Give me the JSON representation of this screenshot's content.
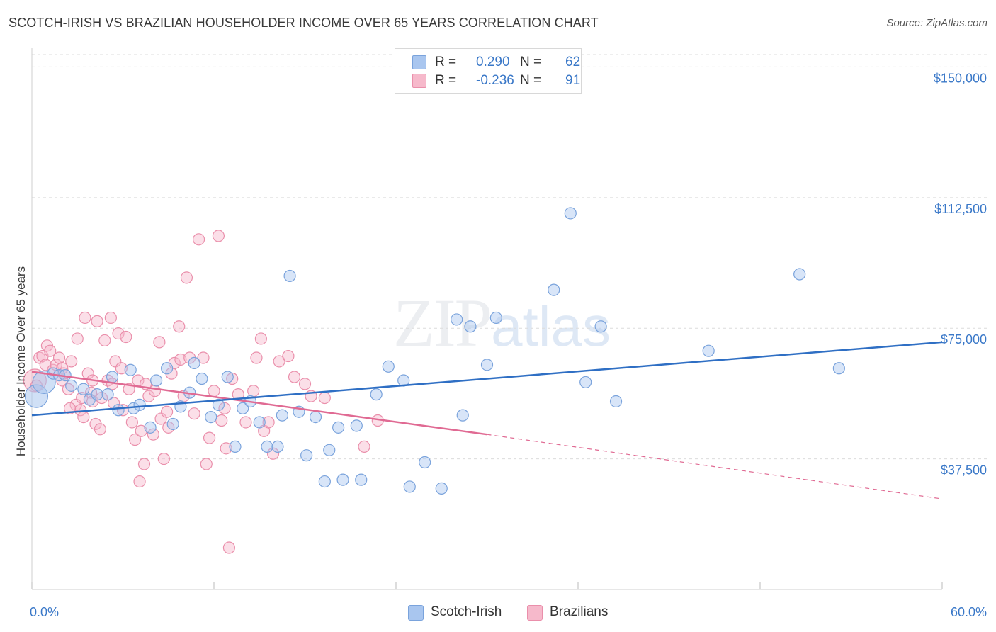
{
  "title": "SCOTCH-IRISH VS BRAZILIAN HOUSEHOLDER INCOME OVER 65 YEARS CORRELATION CHART",
  "source": "Source: ZipAtlas.com",
  "watermark": {
    "zip": "ZIP",
    "atlas": "atlas"
  },
  "legend": {
    "scotch": {
      "r_label": "R =",
      "r_value": "0.290",
      "n_label": "N =",
      "n_value": "62"
    },
    "brazil": {
      "r_label": "R =",
      "r_value": "-0.236",
      "n_label": "N =",
      "n_value": "91"
    }
  },
  "colors": {
    "scotch_fill": "#a9c6ef",
    "scotch_stroke": "#7aa3dc",
    "scotch_line": "#2f6fc4",
    "brazil_fill": "#f6b9cb",
    "brazil_stroke": "#ea8fab",
    "brazil_line": "#e06a93",
    "grid": "#dcdcdc",
    "axis_text": "#3a78c8"
  },
  "chart_data": {
    "type": "scatter",
    "title": "SCOTCH-IRISH VS BRAZILIAN HOUSEHOLDER INCOME OVER 65 YEARS CORRELATION CHART",
    "xlabel": "",
    "ylabel": "Householder Income Over 65 years",
    "xlim": [
      0,
      60
    ],
    "ylim": [
      0,
      157000
    ],
    "x_tick_labels": [
      "0.0%",
      "60.0%"
    ],
    "y_ticks": [
      37500,
      75000,
      112500,
      150000
    ],
    "y_tick_labels": [
      "$37,500",
      "$75,000",
      "$112,500",
      "$150,000"
    ],
    "grid": true,
    "legend_position": "top-center",
    "series": [
      {
        "name": "Scotch-Irish",
        "trend": {
          "x": [
            0,
            60
          ],
          "y": [
            50000,
            71000
          ]
        },
        "points": [
          [
            0.3,
            55500,
            "big"
          ],
          [
            0.8,
            59500,
            "big"
          ],
          [
            1.4,
            62000
          ],
          [
            1.8,
            61500
          ],
          [
            2.2,
            61500
          ],
          [
            2.6,
            58500
          ],
          [
            3.4,
            57500
          ],
          [
            3.8,
            54500
          ],
          [
            4.3,
            56000
          ],
          [
            5.0,
            56000
          ],
          [
            5.3,
            61000
          ],
          [
            5.7,
            51500
          ],
          [
            6.5,
            63000
          ],
          [
            6.7,
            52000
          ],
          [
            7.1,
            53000
          ],
          [
            7.8,
            46500
          ],
          [
            8.2,
            60000
          ],
          [
            8.9,
            63500
          ],
          [
            9.3,
            47500
          ],
          [
            9.8,
            52500
          ],
          [
            10.4,
            56500
          ],
          [
            10.7,
            65000
          ],
          [
            11.2,
            60500
          ],
          [
            11.8,
            49500
          ],
          [
            12.3,
            53000
          ],
          [
            12.9,
            61000
          ],
          [
            13.4,
            41000
          ],
          [
            13.9,
            52000
          ],
          [
            14.4,
            54000
          ],
          [
            15.0,
            48000
          ],
          [
            15.5,
            41000
          ],
          [
            16.2,
            41000
          ],
          [
            16.5,
            50000
          ],
          [
            17.0,
            90000
          ],
          [
            17.6,
            51000
          ],
          [
            18.1,
            38500
          ],
          [
            18.7,
            49500
          ],
          [
            19.3,
            31000
          ],
          [
            19.6,
            40000
          ],
          [
            20.2,
            46500
          ],
          [
            20.5,
            31500
          ],
          [
            21.4,
            47000
          ],
          [
            21.7,
            31500
          ],
          [
            22.7,
            56000
          ],
          [
            23.5,
            64000
          ],
          [
            24.5,
            60000
          ],
          [
            24.9,
            29500
          ],
          [
            25.9,
            36500
          ],
          [
            27.0,
            29000
          ],
          [
            28.0,
            77500
          ],
          [
            28.4,
            50000
          ],
          [
            28.9,
            75500
          ],
          [
            30.0,
            64500
          ],
          [
            30.6,
            78000
          ],
          [
            34.4,
            86000
          ],
          [
            35.5,
            108000
          ],
          [
            36.5,
            59500
          ],
          [
            37.5,
            75500
          ],
          [
            38.5,
            54000
          ],
          [
            44.6,
            68500
          ],
          [
            50.6,
            90500
          ],
          [
            53.2,
            63500
          ]
        ]
      },
      {
        "name": "Brazilians",
        "trend": {
          "x": [
            0,
            30
          ],
          "y": [
            62500,
            44500
          ]
        },
        "trend_dashed": {
          "x": [
            30,
            60
          ],
          "y": [
            44500,
            26000
          ]
        },
        "points": [
          [
            0.2,
            60000,
            "big"
          ],
          [
            0.3,
            58500
          ],
          [
            0.5,
            66500
          ],
          [
            0.7,
            67000
          ],
          [
            0.9,
            64500
          ],
          [
            1.0,
            70000
          ],
          [
            1.2,
            68500
          ],
          [
            1.4,
            63000
          ],
          [
            1.6,
            64500
          ],
          [
            1.8,
            66500
          ],
          [
            2.0,
            63500
          ],
          [
            2.0,
            60000
          ],
          [
            2.1,
            62000
          ],
          [
            2.4,
            57500
          ],
          [
            2.6,
            65500
          ],
          [
            2.9,
            53000
          ],
          [
            3.0,
            72000
          ],
          [
            3.2,
            51500
          ],
          [
            3.4,
            49500
          ],
          [
            3.5,
            78000
          ],
          [
            3.7,
            62000
          ],
          [
            3.9,
            56500
          ],
          [
            4.0,
            60000
          ],
          [
            4.0,
            54000
          ],
          [
            4.2,
            47500
          ],
          [
            4.3,
            77000
          ],
          [
            4.5,
            46000
          ],
          [
            4.6,
            55000
          ],
          [
            4.8,
            71500
          ],
          [
            5.0,
            60000
          ],
          [
            5.2,
            78000
          ],
          [
            5.3,
            59000
          ],
          [
            5.5,
            65500
          ],
          [
            5.7,
            73500
          ],
          [
            5.9,
            63500
          ],
          [
            6.0,
            51500
          ],
          [
            6.2,
            72500
          ],
          [
            6.4,
            57500
          ],
          [
            6.6,
            48000
          ],
          [
            6.8,
            43000
          ],
          [
            7.0,
            60000
          ],
          [
            7.1,
            31000
          ],
          [
            7.4,
            36000
          ],
          [
            7.5,
            59000
          ],
          [
            7.7,
            55500
          ],
          [
            8.0,
            44500
          ],
          [
            8.1,
            57000
          ],
          [
            8.4,
            71000
          ],
          [
            8.5,
            49000
          ],
          [
            8.7,
            37500
          ],
          [
            8.9,
            51000
          ],
          [
            9.2,
            62000
          ],
          [
            9.4,
            65000
          ],
          [
            9.7,
            75500
          ],
          [
            9.8,
            66000
          ],
          [
            10.2,
            89500
          ],
          [
            10.4,
            66500
          ],
          [
            10.7,
            50500
          ],
          [
            11.0,
            100500
          ],
          [
            11.3,
            66500
          ],
          [
            11.5,
            36000
          ],
          [
            11.7,
            43500
          ],
          [
            12.0,
            57000
          ],
          [
            12.3,
            101500
          ],
          [
            12.5,
            48500
          ],
          [
            12.8,
            40500
          ],
          [
            13.0,
            12000
          ],
          [
            13.2,
            60500
          ],
          [
            13.6,
            56000
          ],
          [
            14.1,
            48000
          ],
          [
            14.6,
            57000
          ],
          [
            14.8,
            66500
          ],
          [
            15.1,
            72000
          ],
          [
            15.3,
            45500
          ],
          [
            15.6,
            48000
          ],
          [
            15.9,
            39000
          ],
          [
            16.3,
            65500
          ],
          [
            16.9,
            67000
          ],
          [
            17.3,
            61000
          ],
          [
            18.0,
            59000
          ],
          [
            18.4,
            55500
          ],
          [
            19.3,
            55000
          ],
          [
            21.9,
            41000
          ],
          [
            22.8,
            48500
          ],
          [
            2.5,
            52000
          ],
          [
            3.3,
            55000
          ],
          [
            5.4,
            53500
          ],
          [
            7.2,
            45500
          ],
          [
            9.0,
            46500
          ],
          [
            10.0,
            55500
          ],
          [
            12.7,
            52000
          ]
        ]
      }
    ]
  }
}
